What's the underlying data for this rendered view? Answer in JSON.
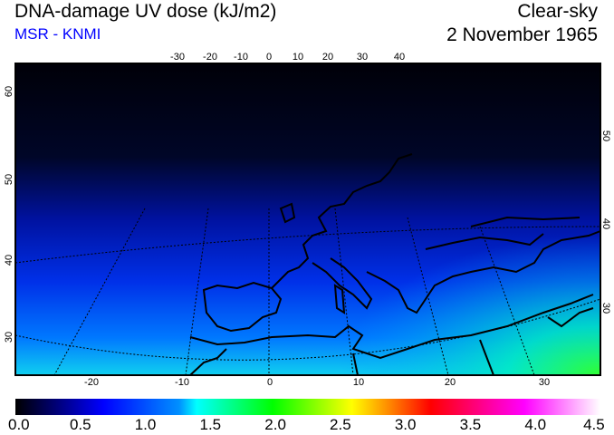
{
  "header": {
    "title": "DNA-damage UV dose (kJ/m2)",
    "source": "MSR - KNMI",
    "condition": "Clear-sky",
    "date": "2 November 1965"
  },
  "map": {
    "top_lon_labels": [
      "-30",
      "-20",
      "-10",
      "0",
      "10",
      "20",
      "30",
      "40"
    ],
    "bottom_lon_labels": [
      "-20",
      "-10",
      "0",
      "10",
      "20",
      "30"
    ],
    "left_lat_labels": [
      "60",
      "50",
      "40",
      "30"
    ],
    "right_lat_labels": [
      "50",
      "40",
      "30"
    ]
  },
  "colorbar": {
    "ticks": [
      "0.0",
      "0.5",
      "1.0",
      "1.5",
      "2.0",
      "2.5",
      "3.0",
      "3.5",
      "4.0",
      "4.5"
    ],
    "range": [
      0,
      4.5
    ],
    "colors": [
      "#000000",
      "#0000ff",
      "#00ffff",
      "#00ff00",
      "#ffff00",
      "#ff0000",
      "#ff00ff",
      "#ffffff"
    ]
  }
}
